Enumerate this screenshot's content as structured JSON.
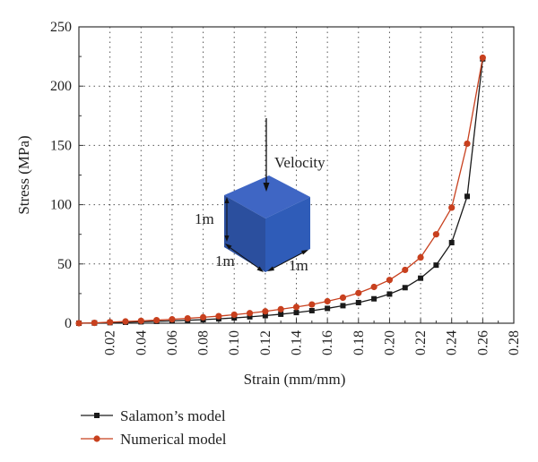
{
  "chart_data": {
    "type": "line",
    "title": "",
    "xlabel": "Strain (mm/mm)",
    "ylabel": "Stress (MPa)",
    "xlim": [
      0,
      0.28
    ],
    "ylim": [
      0,
      250
    ],
    "x_ticks": [
      "0.02",
      "0.04",
      "0.06",
      "0.08",
      "0.10",
      "0.12",
      "0.14",
      "0.16",
      "0.18",
      "0.20",
      "0.22",
      "0.24",
      "0.26",
      "0.28"
    ],
    "y_ticks": [
      "0",
      "50",
      "100",
      "150",
      "200",
      "250"
    ],
    "grid": true,
    "legend_position": "bottom-left",
    "series": [
      {
        "name": "Salamon’s model",
        "color": "#1a1a1a",
        "marker": "square",
        "x": [
          0,
          0.01,
          0.02,
          0.03,
          0.04,
          0.05,
          0.06,
          0.07,
          0.08,
          0.09,
          0.1,
          0.11,
          0.12,
          0.13,
          0.14,
          0.15,
          0.16,
          0.17,
          0.18,
          0.19,
          0.2,
          0.21,
          0.22,
          0.23,
          0.24,
          0.25,
          0.26
        ],
        "y": [
          0,
          0.2,
          0.5,
          0.8,
          1.2,
          1.6,
          2.0,
          2.5,
          3.0,
          3.7,
          4.5,
          5.4,
          6.4,
          7.6,
          9.0,
          10.6,
          12.5,
          14.8,
          17.4,
          20.6,
          24.6,
          30.0,
          38.0,
          49.0,
          68.0,
          107.0,
          223.0
        ]
      },
      {
        "name": "Numerical model",
        "color": "#c8401e",
        "marker": "circle",
        "x": [
          0,
          0.01,
          0.02,
          0.03,
          0.04,
          0.05,
          0.06,
          0.07,
          0.08,
          0.09,
          0.1,
          0.11,
          0.12,
          0.13,
          0.14,
          0.15,
          0.16,
          0.17,
          0.18,
          0.19,
          0.2,
          0.21,
          0.22,
          0.23,
          0.24,
          0.25,
          0.26
        ],
        "y": [
          0,
          0.3,
          0.9,
          1.5,
          2.0,
          2.6,
          3.3,
          4.1,
          5.0,
          6.0,
          7.2,
          8.5,
          10.0,
          11.8,
          13.7,
          15.8,
          18.5,
          21.6,
          25.5,
          30.6,
          36.5,
          45.0,
          55.5,
          75.0,
          97.5,
          151.5,
          224.0
        ]
      }
    ],
    "annotations": {
      "arrow_label": "Velocity",
      "cube_labels": [
        "1m",
        "1m",
        "1m"
      ]
    }
  }
}
